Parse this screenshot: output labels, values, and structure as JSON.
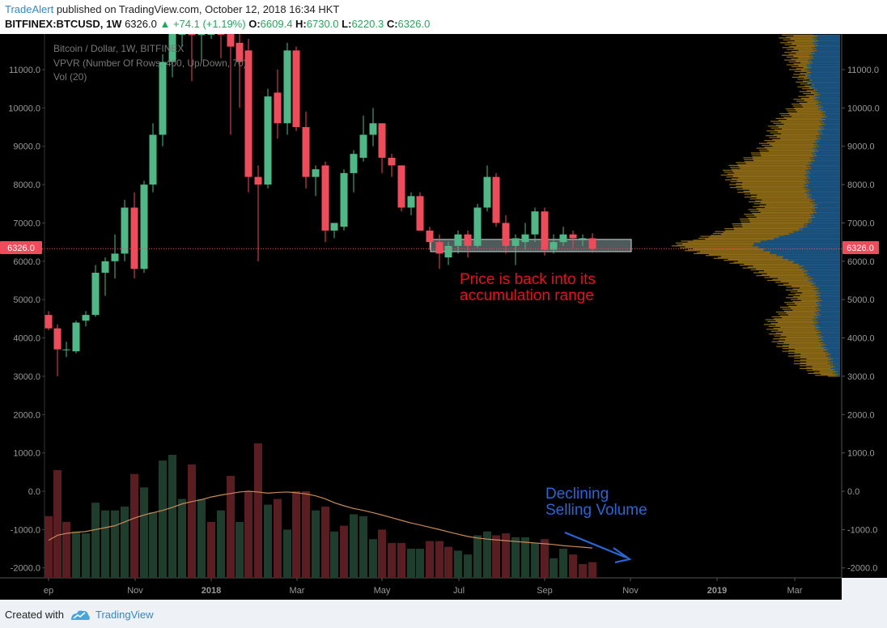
{
  "header": {
    "author": "TradeAlert",
    "published_text": " published on TradingView.com, October 12, 2018 16:34 HKT",
    "symbol": "BITFINEX:BTCUSD, 1W",
    "last": "6326.0",
    "change": "▲ +74.1 (+1.19%)",
    "o_label": "O:",
    "o_value": "6609.4",
    "h_label": "H:",
    "h_value": "6730.0",
    "l_label": "L:",
    "l_value": "6220.3",
    "c_label": "C:",
    "c_value": "6326.0"
  },
  "legend": {
    "line1": "Bitcoin / Dollar, 1W, BITFINEX",
    "line2": "VPVR (Number Of Rows, 400, Up/Down, 70)",
    "line3": "Vol (20)"
  },
  "annotations": {
    "accumulation_line1": "Price is back into its",
    "accumulation_line2": "accumulation range",
    "volume_line1": "Declining",
    "volume_line2": "Selling Volume"
  },
  "price_badge": "6326.0",
  "footer": {
    "created_with": "Created with",
    "brand": "TradingView"
  },
  "colors": {
    "background": "#000000",
    "up": "#4fb886",
    "down": "#ee4b5b",
    "vol_up": "#1f3d2c",
    "vol_down": "#5a1d22",
    "vpvr_up": "#9a7418",
    "vpvr_down": "#1f5f92",
    "ma": "#c98a57",
    "red_text": "#e8101f",
    "blue_text": "#2966d6"
  },
  "chart_data": {
    "type": "candlestick",
    "yaxis": {
      "ticks": [
        "11000.0",
        "10000.0",
        "9000.0",
        "8000.0",
        "7000.0",
        "6000.0",
        "5000.0",
        "4000.0",
        "3000.0",
        "2000.0",
        "1000.0",
        "0.0",
        "-1000.0",
        "-2000.0"
      ],
      "tick_values": [
        11000,
        10000,
        9000,
        8000,
        7000,
        6000,
        5000,
        4000,
        3000,
        2000,
        1000,
        0,
        -1000,
        -2000
      ],
      "range": [
        -2200,
        12300
      ]
    },
    "xaxis": {
      "labels": [
        "ep",
        "Nov",
        "2018",
        "Mar",
        "May",
        "Jul",
        "Sep",
        "Nov",
        "2019",
        "Mar"
      ],
      "label_positions": [
        60,
        167,
        261,
        367,
        472,
        567,
        673,
        779,
        886,
        982
      ]
    },
    "current_price": 6326.0,
    "accumulation_range": [
      6250,
      6570
    ],
    "candles": [
      {
        "x": 60,
        "o": 4600,
        "h": 4700,
        "l": 4200,
        "c": 4250
      },
      {
        "x": 71,
        "o": 4250,
        "h": 4350,
        "l": 3000,
        "c": 3700
      },
      {
        "x": 82,
        "o": 3700,
        "h": 3900,
        "l": 3500,
        "c": 3700
      },
      {
        "x": 94,
        "o": 3650,
        "h": 4450,
        "l": 3600,
        "c": 4400
      },
      {
        "x": 106,
        "o": 4450,
        "h": 4700,
        "l": 4300,
        "c": 4600
      },
      {
        "x": 118,
        "o": 4600,
        "h": 5900,
        "l": 4550,
        "c": 5700
      },
      {
        "x": 130,
        "o": 5700,
        "h": 6100,
        "l": 5100,
        "c": 6000
      },
      {
        "x": 142,
        "o": 6000,
        "h": 6700,
        "l": 5550,
        "c": 6200
      },
      {
        "x": 154,
        "o": 6200,
        "h": 7600,
        "l": 6000,
        "c": 7400
      },
      {
        "x": 166,
        "o": 7400,
        "h": 7800,
        "l": 5550,
        "c": 5800
      },
      {
        "x": 178,
        "o": 5800,
        "h": 8100,
        "l": 5700,
        "c": 8000
      },
      {
        "x": 189,
        "o": 8000,
        "h": 9600,
        "l": 7800,
        "c": 9300
      },
      {
        "x": 201,
        "o": 9300,
        "h": 11400,
        "l": 9000,
        "c": 11200
      },
      {
        "x": 213,
        "o": 11200,
        "h": 12300,
        "l": 10800,
        "c": 12100
      },
      {
        "x": 225,
        "o": 12100,
        "h": 12300,
        "l": 11600,
        "c": 12300
      },
      {
        "x": 237,
        "o": 12300,
        "h": 12300,
        "l": 10700,
        "c": 11900
      },
      {
        "x": 249,
        "o": 11900,
        "h": 12300,
        "l": 11200,
        "c": 12300
      },
      {
        "x": 261,
        "o": 12300,
        "h": 12300,
        "l": 11800,
        "c": 12300
      },
      {
        "x": 273,
        "o": 12300,
        "h": 12300,
        "l": 11300,
        "c": 12000
      },
      {
        "x": 285,
        "o": 12000,
        "h": 12300,
        "l": 9300,
        "c": 11600
      },
      {
        "x": 296,
        "o": 11700,
        "h": 12300,
        "l": 10000,
        "c": 11200
      },
      {
        "x": 307,
        "o": 11500,
        "h": 11800,
        "l": 7800,
        "c": 8200
      },
      {
        "x": 319,
        "o": 8200,
        "h": 8500,
        "l": 6000,
        "c": 8000
      },
      {
        "x": 331,
        "o": 8000,
        "h": 10500,
        "l": 7900,
        "c": 10300
      },
      {
        "x": 343,
        "o": 10400,
        "h": 11000,
        "l": 9200,
        "c": 9600
      },
      {
        "x": 355,
        "o": 9600,
        "h": 11700,
        "l": 9300,
        "c": 11500
      },
      {
        "x": 366,
        "o": 11500,
        "h": 11600,
        "l": 9400,
        "c": 9500
      },
      {
        "x": 378,
        "o": 9500,
        "h": 9900,
        "l": 7900,
        "c": 8200
      },
      {
        "x": 390,
        "o": 8200,
        "h": 8500,
        "l": 7700,
        "c": 8400
      },
      {
        "x": 402,
        "o": 8500,
        "h": 8600,
        "l": 6500,
        "c": 6800
      },
      {
        "x": 413,
        "o": 6800,
        "h": 7000,
        "l": 6600,
        "c": 7000
      },
      {
        "x": 425,
        "o": 6900,
        "h": 8400,
        "l": 6800,
        "c": 8300
      },
      {
        "x": 437,
        "o": 8300,
        "h": 8900,
        "l": 7800,
        "c": 8800
      },
      {
        "x": 449,
        "o": 8700,
        "h": 9800,
        "l": 8600,
        "c": 9300
      },
      {
        "x": 461,
        "o": 9300,
        "h": 10000,
        "l": 9000,
        "c": 9600
      },
      {
        "x": 472,
        "o": 9600,
        "h": 9600,
        "l": 8300,
        "c": 8700
      },
      {
        "x": 484,
        "o": 8700,
        "h": 8800,
        "l": 8200,
        "c": 8500
      },
      {
        "x": 496,
        "o": 8500,
        "h": 8500,
        "l": 7300,
        "c": 7400
      },
      {
        "x": 508,
        "o": 7400,
        "h": 7800,
        "l": 7200,
        "c": 7700
      },
      {
        "x": 519,
        "o": 7700,
        "h": 7800,
        "l": 6800,
        "c": 6800
      },
      {
        "x": 531,
        "o": 6800,
        "h": 6900,
        "l": 6300,
        "c": 6500
      },
      {
        "x": 543,
        "o": 6500,
        "h": 6700,
        "l": 5800,
        "c": 6200
      },
      {
        "x": 554,
        "o": 6100,
        "h": 6500,
        "l": 5900,
        "c": 6400
      },
      {
        "x": 566,
        "o": 6400,
        "h": 6800,
        "l": 6200,
        "c": 6700
      },
      {
        "x": 578,
        "o": 6700,
        "h": 6800,
        "l": 6100,
        "c": 6400
      },
      {
        "x": 590,
        "o": 6400,
        "h": 7500,
        "l": 6350,
        "c": 7400
      },
      {
        "x": 602,
        "o": 7400,
        "h": 8500,
        "l": 7300,
        "c": 8200
      },
      {
        "x": 613,
        "o": 8200,
        "h": 8300,
        "l": 6900,
        "c": 7000
      },
      {
        "x": 625,
        "o": 7000,
        "h": 7200,
        "l": 6200,
        "c": 6400
      },
      {
        "x": 637,
        "o": 6400,
        "h": 6700,
        "l": 5900,
        "c": 6600
      },
      {
        "x": 649,
        "o": 6500,
        "h": 7000,
        "l": 6300,
        "c": 6700
      },
      {
        "x": 661,
        "o": 6700,
        "h": 7400,
        "l": 6500,
        "c": 7300
      },
      {
        "x": 673,
        "o": 7300,
        "h": 7400,
        "l": 6150,
        "c": 6300
      },
      {
        "x": 684,
        "o": 6300,
        "h": 6700,
        "l": 6200,
        "c": 6500
      },
      {
        "x": 696,
        "o": 6500,
        "h": 6900,
        "l": 6400,
        "c": 6700
      },
      {
        "x": 708,
        "o": 6700,
        "h": 6800,
        "l": 6350,
        "c": 6600
      },
      {
        "x": 720,
        "o": 6600,
        "h": 6700,
        "l": 6400,
        "c": 6600
      },
      {
        "x": 732,
        "o": 6600,
        "h": 6730,
        "l": 6220,
        "c": 6326
      }
    ],
    "volume": {
      "ylim": [
        -2200,
        1300
      ],
      "bars": [
        {
          "x": 60,
          "v": -650,
          "up": false
        },
        {
          "x": 71,
          "v": 550,
          "up": false
        },
        {
          "x": 82,
          "v": -800,
          "up": false
        },
        {
          "x": 94,
          "v": -1050,
          "up": true
        },
        {
          "x": 106,
          "v": -1100,
          "up": true
        },
        {
          "x": 118,
          "v": -300,
          "up": true
        },
        {
          "x": 130,
          "v": -500,
          "up": true
        },
        {
          "x": 142,
          "v": -500,
          "up": true
        },
        {
          "x": 154,
          "v": -400,
          "up": true
        },
        {
          "x": 166,
          "v": 450,
          "up": false
        },
        {
          "x": 178,
          "v": 100,
          "up": true
        },
        {
          "x": 189,
          "v": -550,
          "up": true
        },
        {
          "x": 201,
          "v": 800,
          "up": true
        },
        {
          "x": 213,
          "v": 950,
          "up": true
        },
        {
          "x": 225,
          "v": -200,
          "up": true
        },
        {
          "x": 237,
          "v": 700,
          "up": false
        },
        {
          "x": 249,
          "v": -200,
          "up": true
        },
        {
          "x": 261,
          "v": -800,
          "up": false
        },
        {
          "x": 273,
          "v": -500,
          "up": true
        },
        {
          "x": 285,
          "v": 400,
          "up": false
        },
        {
          "x": 296,
          "v": -800,
          "up": true
        },
        {
          "x": 307,
          "v": 0,
          "up": false
        },
        {
          "x": 319,
          "v": 1250,
          "up": false
        },
        {
          "x": 331,
          "v": -350,
          "up": true
        },
        {
          "x": 343,
          "v": -200,
          "up": false
        },
        {
          "x": 355,
          "v": -1000,
          "up": true
        },
        {
          "x": 366,
          "v": 0,
          "up": false
        },
        {
          "x": 378,
          "v": 0,
          "up": false
        },
        {
          "x": 390,
          "v": -500,
          "up": true
        },
        {
          "x": 402,
          "v": -400,
          "up": false
        },
        {
          "x": 413,
          "v": -1050,
          "up": true
        },
        {
          "x": 425,
          "v": -900,
          "up": false
        },
        {
          "x": 437,
          "v": -600,
          "up": true
        },
        {
          "x": 449,
          "v": -650,
          "up": true
        },
        {
          "x": 461,
          "v": -1250,
          "up": true
        },
        {
          "x": 472,
          "v": -1000,
          "up": false
        },
        {
          "x": 484,
          "v": -1350,
          "up": false
        },
        {
          "x": 496,
          "v": -1350,
          "up": false
        },
        {
          "x": 508,
          "v": -1500,
          "up": true
        },
        {
          "x": 519,
          "v": -1500,
          "up": true
        },
        {
          "x": 531,
          "v": -1300,
          "up": false
        },
        {
          "x": 543,
          "v": -1300,
          "up": false
        },
        {
          "x": 554,
          "v": -1450,
          "up": false
        },
        {
          "x": 566,
          "v": -1550,
          "up": true
        },
        {
          "x": 578,
          "v": -1650,
          "up": true
        },
        {
          "x": 590,
          "v": -1150,
          "up": true
        },
        {
          "x": 602,
          "v": -1050,
          "up": true
        },
        {
          "x": 613,
          "v": -1150,
          "up": false
        },
        {
          "x": 625,
          "v": -1100,
          "up": false
        },
        {
          "x": 637,
          "v": -1200,
          "up": true
        },
        {
          "x": 649,
          "v": -1200,
          "up": true
        },
        {
          "x": 661,
          "v": -1350,
          "up": true
        },
        {
          "x": 673,
          "v": -1250,
          "up": false
        },
        {
          "x": 684,
          "v": -1750,
          "up": true
        },
        {
          "x": 696,
          "v": -1500,
          "up": true
        },
        {
          "x": 708,
          "v": -1650,
          "up": false
        },
        {
          "x": 720,
          "v": -1900,
          "up": false
        },
        {
          "x": 732,
          "v": -1850,
          "up": false
        }
      ],
      "ma": [
        -1280,
        -1150,
        -1100,
        -1070,
        -1050,
        -1000,
        -950,
        -900,
        -800,
        -700,
        -620,
        -560,
        -500,
        -420,
        -330,
        -270,
        -220,
        -150,
        -100,
        -60,
        -20,
        0,
        -20,
        -50,
        -30,
        -20,
        -40,
        -70,
        -120,
        -200,
        -300,
        -380,
        -450,
        -500,
        -560,
        -620,
        -690,
        -760,
        -830,
        -880,
        -940,
        -1000,
        -1060,
        -1120,
        -1180,
        -1220,
        -1250,
        -1270,
        -1290,
        -1310,
        -1330,
        -1350,
        -1370,
        -1390,
        -1420,
        -1440,
        -1460,
        -1480
      ]
    }
  }
}
